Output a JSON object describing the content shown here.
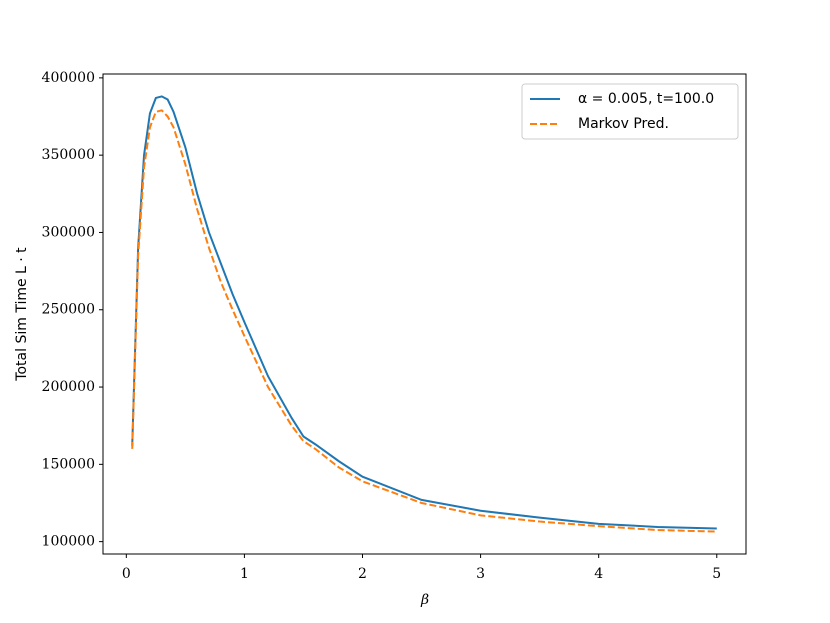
{
  "chart_data": {
    "type": "line",
    "xlabel": "β",
    "ylabel": "Total Sim Time L · t",
    "x": [
      0.05,
      0.1,
      0.15,
      0.2,
      0.25,
      0.3,
      0.35,
      0.4,
      0.5,
      0.6,
      0.7,
      0.8,
      0.9,
      1.0,
      1.2,
      1.4,
      1.5,
      1.6,
      1.8,
      2.0,
      2.5,
      3.0,
      3.5,
      4.0,
      4.5,
      5.0
    ],
    "series": [
      {
        "name": "α = 0.005, t=100.0",
        "color": "#1f77b4",
        "dash": false,
        "values": [
          162000,
          290000,
          350000,
          377000,
          387000,
          388000,
          386000,
          378000,
          355000,
          325000,
          300000,
          280000,
          260000,
          242000,
          207000,
          180000,
          168000,
          163000,
          152000,
          142000,
          127000,
          120000,
          115500,
          111500,
          109500,
          108500
        ]
      },
      {
        "name": "Markov Pred.",
        "color": "#ff7f0e",
        "dash": true,
        "values": [
          160000,
          285000,
          342000,
          368000,
          378000,
          379000,
          375000,
          368000,
          344000,
          315000,
          290000,
          268000,
          250000,
          233000,
          200000,
          175000,
          165000,
          160000,
          148000,
          139000,
          125000,
          117000,
          113000,
          110000,
          107500,
          106500
        ]
      }
    ],
    "xlim": [
      -0.1975,
      5.2475
    ],
    "ylim": [
      92000,
      402500
    ],
    "xticks": [
      0,
      1,
      2,
      3,
      4,
      5
    ],
    "yticks": [
      100000,
      150000,
      200000,
      250000,
      300000,
      350000,
      400000
    ],
    "legend": "upper right"
  }
}
